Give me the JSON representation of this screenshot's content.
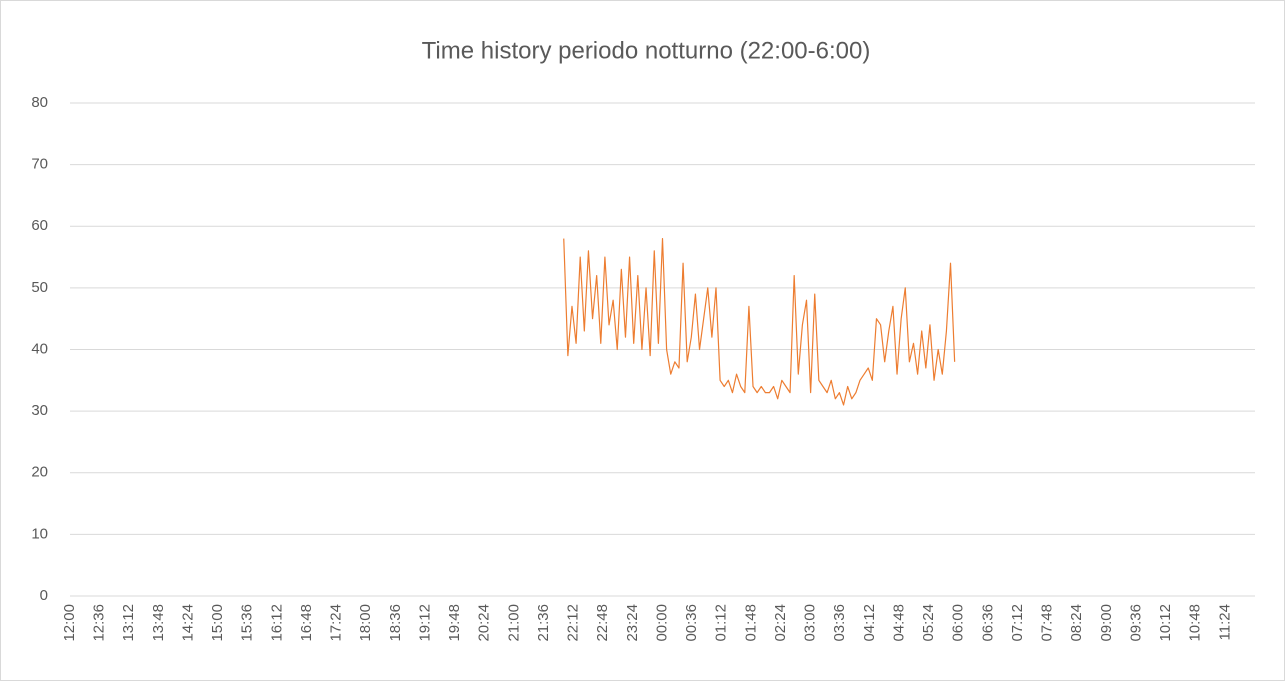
{
  "chart_data": {
    "type": "line",
    "title": "Time history periodo notturno (22:00-6:00)",
    "x": [
      "22:00",
      "22:05",
      "22:10",
      "22:15",
      "22:20",
      "22:25",
      "22:30",
      "22:35",
      "22:40",
      "22:45",
      "22:50",
      "22:55",
      "23:00",
      "23:05",
      "23:10",
      "23:15",
      "23:20",
      "23:25",
      "23:30",
      "23:35",
      "23:40",
      "23:45",
      "23:50",
      "23:55",
      "00:00",
      "00:05",
      "00:10",
      "00:15",
      "00:20",
      "00:25",
      "00:30",
      "00:35",
      "00:40",
      "00:45",
      "00:50",
      "00:55",
      "01:00",
      "01:05",
      "01:10",
      "01:15",
      "01:20",
      "01:25",
      "01:30",
      "01:35",
      "01:40",
      "01:45",
      "01:50",
      "01:55",
      "02:00",
      "02:05",
      "02:10",
      "02:15",
      "02:20",
      "02:25",
      "02:30",
      "02:35",
      "02:40",
      "02:45",
      "02:50",
      "02:55",
      "03:00",
      "03:05",
      "03:10",
      "03:15",
      "03:20",
      "03:25",
      "03:30",
      "03:35",
      "03:40",
      "03:45",
      "03:50",
      "03:55",
      "04:00",
      "04:05",
      "04:10",
      "04:15",
      "04:20",
      "04:25",
      "04:30",
      "04:35",
      "04:40",
      "04:45",
      "04:50",
      "04:55",
      "05:00",
      "05:05",
      "05:10",
      "05:15",
      "05:20",
      "05:25",
      "05:30",
      "05:35",
      "05:40",
      "05:45",
      "05:50",
      "05:55"
    ],
    "values": [
      58,
      39,
      47,
      41,
      55,
      43,
      56,
      45,
      52,
      41,
      55,
      44,
      48,
      40,
      53,
      42,
      55,
      41,
      52,
      40,
      50,
      39,
      56,
      41,
      58,
      40,
      36,
      38,
      37,
      54,
      38,
      42,
      49,
      40,
      45,
      50,
      42,
      50,
      35,
      34,
      35,
      33,
      36,
      34,
      33,
      47,
      34,
      33,
      34,
      33,
      33,
      34,
      32,
      35,
      34,
      33,
      52,
      36,
      44,
      48,
      33,
      49,
      35,
      34,
      33,
      35,
      32,
      33,
      31,
      34,
      32,
      33,
      35,
      36,
      37,
      35,
      45,
      44,
      38,
      43,
      47,
      36,
      45,
      50,
      38,
      41,
      36,
      43,
      37,
      44,
      35,
      40,
      36,
      43,
      54,
      38
    ],
    "color": "#ed7d31",
    "xticks": [
      "12:00",
      "12:36",
      "13:12",
      "13:48",
      "14:24",
      "15:00",
      "15:36",
      "16:12",
      "16:48",
      "17:24",
      "18:00",
      "18:36",
      "19:12",
      "19:48",
      "20:24",
      "21:00",
      "21:36",
      "22:12",
      "22:48",
      "23:24",
      "00:00",
      "00:36",
      "01:12",
      "01:48",
      "02:24",
      "03:00",
      "03:36",
      "04:12",
      "04:48",
      "05:24",
      "06:00",
      "06:36",
      "07:12",
      "07:48",
      "08:24",
      "09:00",
      "09:36",
      "10:12",
      "10:48",
      "11:24"
    ],
    "ylim": [
      0,
      80
    ],
    "yticks": [
      0,
      10,
      20,
      30,
      40,
      50,
      60,
      70,
      80
    ],
    "grid": true
  }
}
